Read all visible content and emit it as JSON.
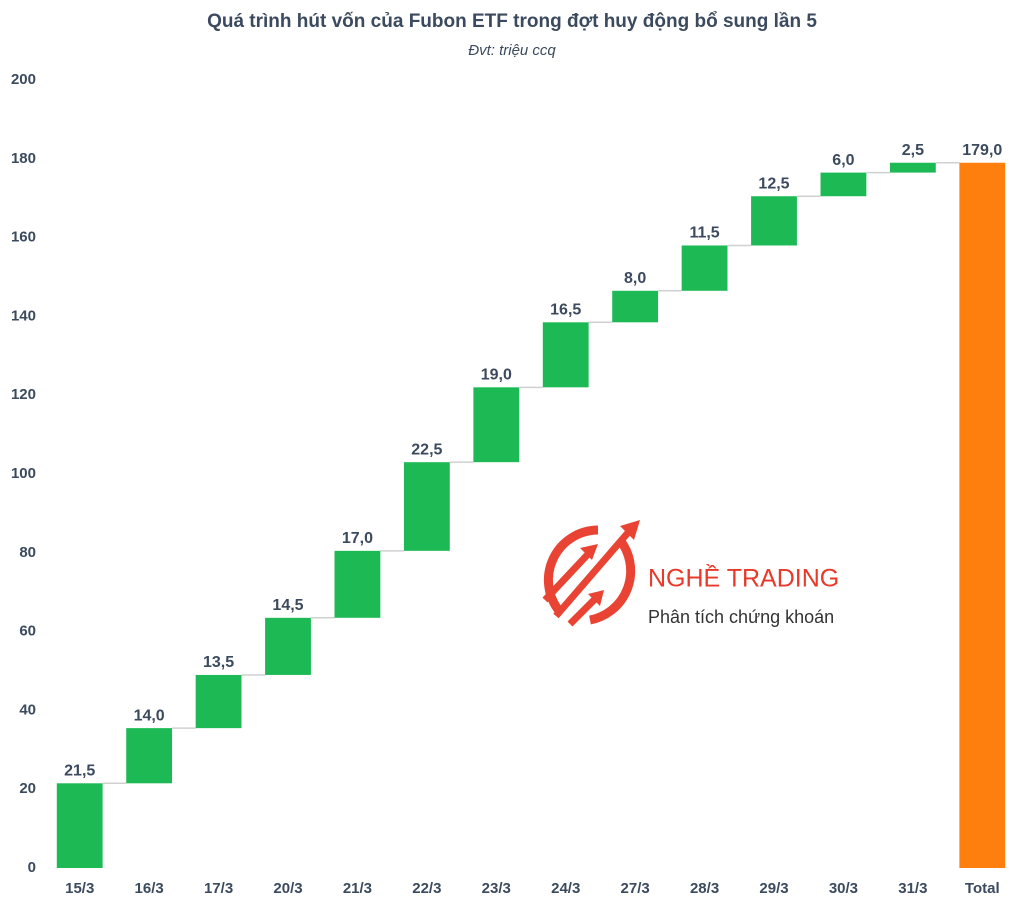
{
  "chart_data": {
    "type": "waterfall",
    "title": "Quá trình hút vốn của Fubon ETF trong đợt huy động bổ sung lần 5",
    "subtitle": "Đvt: triệu ccq",
    "categories": [
      "15/3",
      "16/3",
      "17/3",
      "20/3",
      "21/3",
      "22/3",
      "23/3",
      "24/3",
      "27/3",
      "28/3",
      "29/3",
      "30/3",
      "31/3",
      "Total"
    ],
    "values": [
      21.5,
      14.0,
      13.5,
      14.5,
      17.0,
      22.5,
      19.0,
      16.5,
      8.0,
      11.5,
      12.5,
      6.0,
      2.5,
      179.0
    ],
    "value_labels": [
      "21,5",
      "14,0",
      "13,5",
      "14,5",
      "17,0",
      "22,5",
      "19,0",
      "16,5",
      "8,0",
      "11,5",
      "12,5",
      "6,0",
      "2,5",
      "179,0"
    ],
    "color": "#1db954",
    "total_color": "#ff7f0e",
    "ylim": [
      0,
      200
    ],
    "yticks": [
      0,
      20,
      40,
      60,
      80,
      100,
      120,
      140,
      160,
      180,
      200
    ],
    "grid": false
  },
  "watermark": {
    "title": "NGHỀ TRADING",
    "subtitle": "Phân tích chứng khoán"
  }
}
